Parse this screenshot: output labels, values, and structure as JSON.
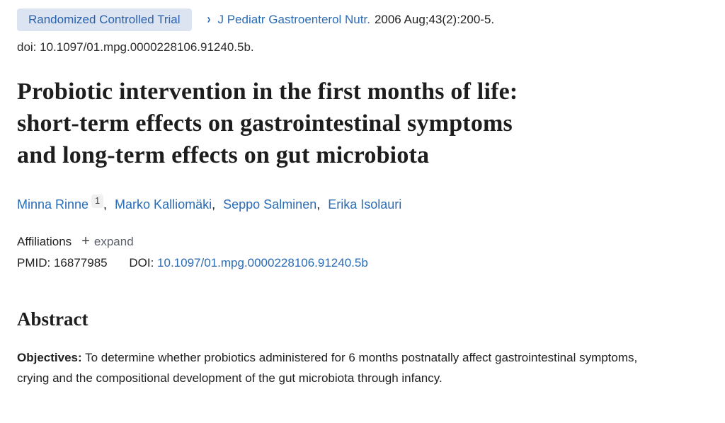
{
  "citation": {
    "pub_type": "Randomized Controlled Trial",
    "chevron_icon": "›",
    "journal_link": "J Pediatr Gastroenterol Nutr.",
    "issue_text": "2006 Aug;43(2):200-5.",
    "doi_line": "doi: 10.1097/01.mpg.0000228106.91240.5b."
  },
  "title": {
    "lines": [
      "Probiotic intervention in the first months of life:",
      "short-term effects on gastrointestinal symptoms",
      "and long-term effects on gut microbiota"
    ],
    "full": "Probiotic intervention in the first months of life: short-term effects on gastrointestinal symptoms and long-term effects on gut microbiota"
  },
  "authors": {
    "separator": ",",
    "list": [
      {
        "name": "Minna Rinne",
        "sup": "1"
      },
      {
        "name": "Marko Kalliomäki"
      },
      {
        "name": "Seppo Salminen"
      },
      {
        "name": "Erika Isolauri"
      }
    ]
  },
  "affiliations": {
    "label": "Affiliations",
    "plus_icon": "+",
    "expand_label": "expand"
  },
  "identifiers": {
    "pmid_label": "PMID:",
    "pmid_value": "16877985",
    "doi_label": "DOI:",
    "doi_link": "10.1097/01.mpg.0000228106.91240.5b"
  },
  "abstract": {
    "heading": "Abstract",
    "objectives_label": "Objectives:",
    "objectives_text": " To determine whether probiotics administered for 6 months postnatally affect gastrointestinal symptoms, crying and the compositional development of the gut microbiota through infancy."
  }
}
